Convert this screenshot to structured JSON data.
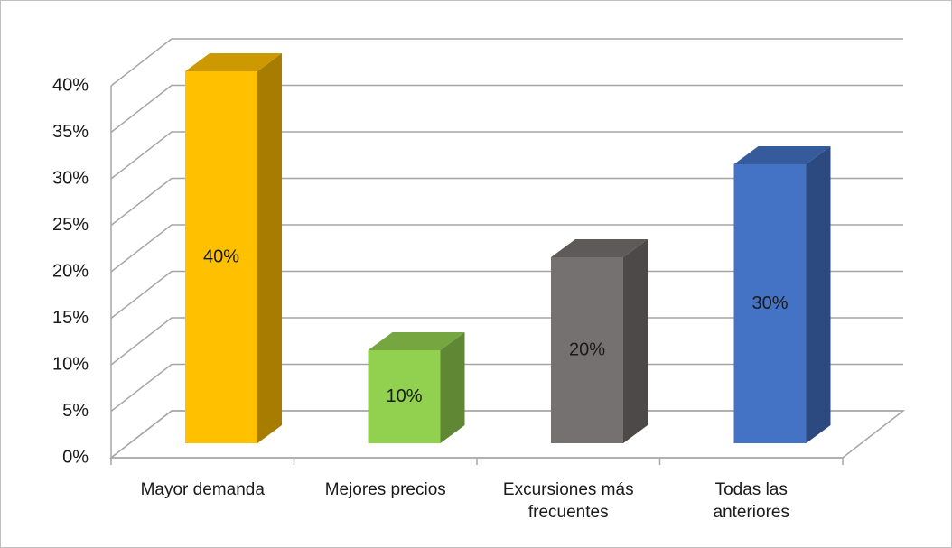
{
  "chart_data": {
    "type": "bar3d",
    "categories": [
      "Mayor demanda",
      "Mejores precios",
      "Excursiones más frecuentes",
      "Todas las anteriores"
    ],
    "values": [
      40,
      10,
      20,
      30
    ],
    "value_labels": [
      "40%",
      "10%",
      "20%",
      "30%"
    ],
    "colors": [
      "#ffc000",
      "#92d050",
      "#767171",
      "#4472c4"
    ],
    "ylim": [
      0,
      40
    ],
    "yticks": [
      {
        "value": 0,
        "label": "0%"
      },
      {
        "value": 5,
        "label": "5%"
      },
      {
        "value": 10,
        "label": "10%"
      },
      {
        "value": 15,
        "label": "15%"
      },
      {
        "value": 20,
        "label": "20%"
      },
      {
        "value": 25,
        "label": "25%"
      },
      {
        "value": 30,
        "label": "30%"
      },
      {
        "value": 35,
        "label": "35%"
      },
      {
        "value": 40,
        "label": "40%"
      }
    ],
    "grid": true
  }
}
